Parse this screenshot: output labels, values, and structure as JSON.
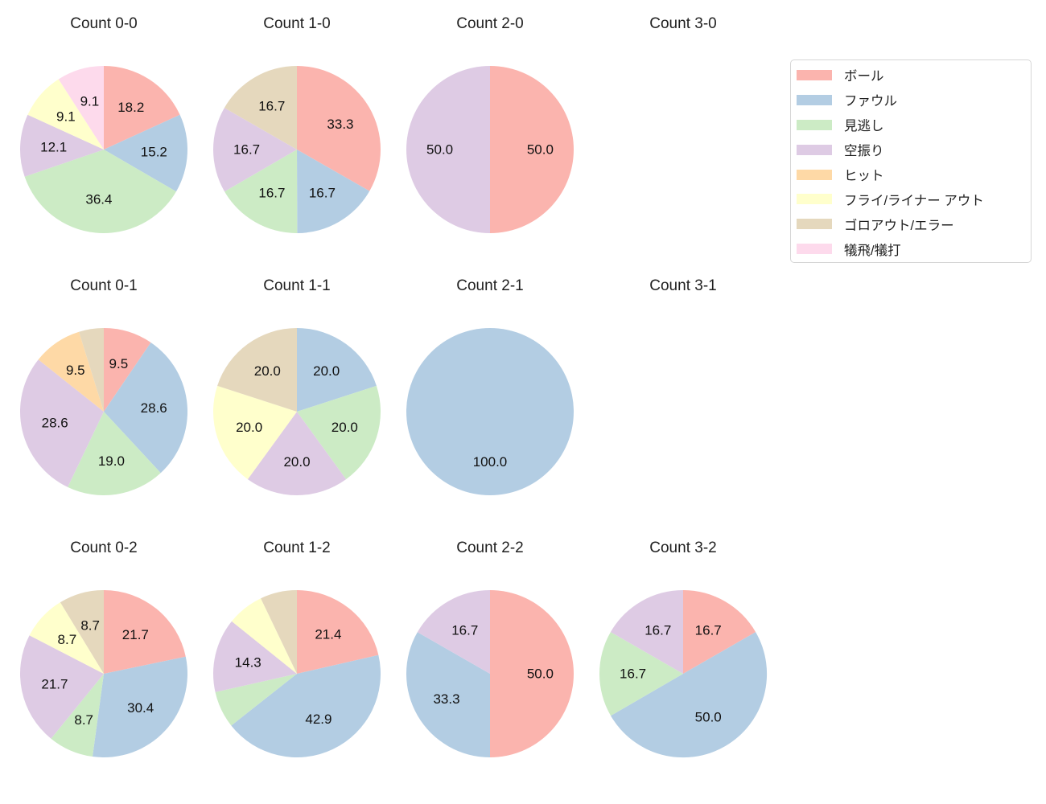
{
  "colors": {
    "ボール": "#fbb4ae",
    "ファウル": "#b3cde3",
    "見逃し": "#ccebc5",
    "空振り": "#decbe4",
    "ヒット": "#fed9a6",
    "フライ/ライナー アウト": "#ffffcc",
    "ゴロアウト/エラー": "#e5d8bd",
    "犠飛/犠打": "#fddaec"
  },
  "legend": {
    "items": [
      {
        "label": "ボール",
        "color": "#fbb4ae"
      },
      {
        "label": "ファウル",
        "color": "#b3cde3"
      },
      {
        "label": "見逃し",
        "color": "#ccebc5"
      },
      {
        "label": "空振り",
        "color": "#decbe4"
      },
      {
        "label": "ヒット",
        "color": "#fed9a6"
      },
      {
        "label": "フライ/ライナー アウト",
        "color": "#ffffcc"
      },
      {
        "label": "ゴロアウト/エラー",
        "color": "#e5d8bd"
      },
      {
        "label": "犠飛/犠打",
        "color": "#fddaec"
      }
    ]
  },
  "chart_data": [
    {
      "type": "pie",
      "title": "Count 0-0",
      "grid": {
        "row": 0,
        "col": 0
      },
      "start_angle_deg": 90,
      "direction": "clockwise",
      "slices": [
        {
          "category": "ボール",
          "value": 18.2,
          "label": "18.2"
        },
        {
          "category": "ファウル",
          "value": 15.2,
          "label": "15.2"
        },
        {
          "category": "見逃し",
          "value": 36.4,
          "label": "36.4"
        },
        {
          "category": "空振り",
          "value": 12.1,
          "label": "12.1"
        },
        {
          "category": "フライ/ライナー アウト",
          "value": 9.1,
          "label": "9.1"
        },
        {
          "category": "犠飛/犠打",
          "value": 9.1,
          "label": "9.1"
        }
      ]
    },
    {
      "type": "pie",
      "title": "Count 1-0",
      "grid": {
        "row": 0,
        "col": 1
      },
      "start_angle_deg": 90,
      "direction": "clockwise",
      "slices": [
        {
          "category": "ボール",
          "value": 33.3,
          "label": "33.3"
        },
        {
          "category": "ファウル",
          "value": 16.7,
          "label": "16.7"
        },
        {
          "category": "見逃し",
          "value": 16.7,
          "label": "16.7"
        },
        {
          "category": "空振り",
          "value": 16.7,
          "label": "16.7"
        },
        {
          "category": "ゴロアウト/エラー",
          "value": 16.7,
          "label": "16.7"
        }
      ]
    },
    {
      "type": "pie",
      "title": "Count 2-0",
      "grid": {
        "row": 0,
        "col": 2
      },
      "start_angle_deg": 90,
      "direction": "clockwise",
      "slices": [
        {
          "category": "ボール",
          "value": 50.0,
          "label": "50.0"
        },
        {
          "category": "空振り",
          "value": 50.0,
          "label": "50.0"
        }
      ]
    },
    {
      "type": "pie",
      "title": "Count 3-0",
      "grid": {
        "row": 0,
        "col": 3
      },
      "start_angle_deg": 90,
      "direction": "clockwise",
      "slices": []
    },
    {
      "type": "pie",
      "title": "Count 0-1",
      "grid": {
        "row": 1,
        "col": 0
      },
      "start_angle_deg": 90,
      "direction": "clockwise",
      "slices": [
        {
          "category": "ボール",
          "value": 9.5,
          "label": "9.5"
        },
        {
          "category": "ファウル",
          "value": 28.6,
          "label": "28.6"
        },
        {
          "category": "見逃し",
          "value": 19.0,
          "label": "19.0"
        },
        {
          "category": "空振り",
          "value": 28.6,
          "label": "28.6"
        },
        {
          "category": "ヒット",
          "value": 9.5,
          "label": "9.5"
        },
        {
          "category": "ゴロアウト/エラー",
          "value": 4.8,
          "label": null
        }
      ]
    },
    {
      "type": "pie",
      "title": "Count 1-1",
      "grid": {
        "row": 1,
        "col": 1
      },
      "start_angle_deg": 90,
      "direction": "clockwise",
      "slices": [
        {
          "category": "ファウル",
          "value": 20.0,
          "label": "20.0"
        },
        {
          "category": "見逃し",
          "value": 20.0,
          "label": "20.0"
        },
        {
          "category": "空振り",
          "value": 20.0,
          "label": "20.0"
        },
        {
          "category": "フライ/ライナー アウト",
          "value": 20.0,
          "label": "20.0"
        },
        {
          "category": "ゴロアウト/エラー",
          "value": 20.0,
          "label": "20.0"
        }
      ]
    },
    {
      "type": "pie",
      "title": "Count 2-1",
      "grid": {
        "row": 1,
        "col": 2
      },
      "start_angle_deg": 90,
      "direction": "clockwise",
      "slices": [
        {
          "category": "ファウル",
          "value": 100.0,
          "label": "100.0"
        }
      ]
    },
    {
      "type": "pie",
      "title": "Count 3-1",
      "grid": {
        "row": 1,
        "col": 3
      },
      "start_angle_deg": 90,
      "direction": "clockwise",
      "slices": []
    },
    {
      "type": "pie",
      "title": "Count 0-2",
      "grid": {
        "row": 2,
        "col": 0
      },
      "start_angle_deg": 90,
      "direction": "clockwise",
      "slices": [
        {
          "category": "ボール",
          "value": 21.7,
          "label": "21.7"
        },
        {
          "category": "ファウル",
          "value": 30.4,
          "label": "30.4"
        },
        {
          "category": "見逃し",
          "value": 8.7,
          "label": "8.7"
        },
        {
          "category": "空振り",
          "value": 21.7,
          "label": "21.7"
        },
        {
          "category": "フライ/ライナー アウト",
          "value": 8.7,
          "label": "8.7"
        },
        {
          "category": "ゴロアウト/エラー",
          "value": 8.7,
          "label": "8.7"
        }
      ]
    },
    {
      "type": "pie",
      "title": "Count 1-2",
      "grid": {
        "row": 2,
        "col": 1
      },
      "start_angle_deg": 90,
      "direction": "clockwise",
      "slices": [
        {
          "category": "ボール",
          "value": 21.4,
          "label": "21.4"
        },
        {
          "category": "ファウル",
          "value": 42.9,
          "label": "42.9"
        },
        {
          "category": "見逃し",
          "value": 7.1,
          "label": null
        },
        {
          "category": "空振り",
          "value": 14.3,
          "label": "14.3"
        },
        {
          "category": "フライ/ライナー アウト",
          "value": 7.1,
          "label": null
        },
        {
          "category": "ゴロアウト/エラー",
          "value": 7.1,
          "label": null
        }
      ]
    },
    {
      "type": "pie",
      "title": "Count 2-2",
      "grid": {
        "row": 2,
        "col": 2
      },
      "start_angle_deg": 90,
      "direction": "clockwise",
      "slices": [
        {
          "category": "ボール",
          "value": 50.0,
          "label": "50.0"
        },
        {
          "category": "ファウル",
          "value": 33.3,
          "label": "33.3"
        },
        {
          "category": "空振り",
          "value": 16.7,
          "label": "16.7"
        }
      ]
    },
    {
      "type": "pie",
      "title": "Count 3-2",
      "grid": {
        "row": 2,
        "col": 3
      },
      "start_angle_deg": 90,
      "direction": "clockwise",
      "slices": [
        {
          "category": "ボール",
          "value": 16.7,
          "label": "16.7"
        },
        {
          "category": "ファウル",
          "value": 50.0,
          "label": "50.0"
        },
        {
          "category": "見逃し",
          "value": 16.7,
          "label": "16.7"
        },
        {
          "category": "空振り",
          "value": 16.7,
          "label": "16.7"
        }
      ]
    }
  ]
}
